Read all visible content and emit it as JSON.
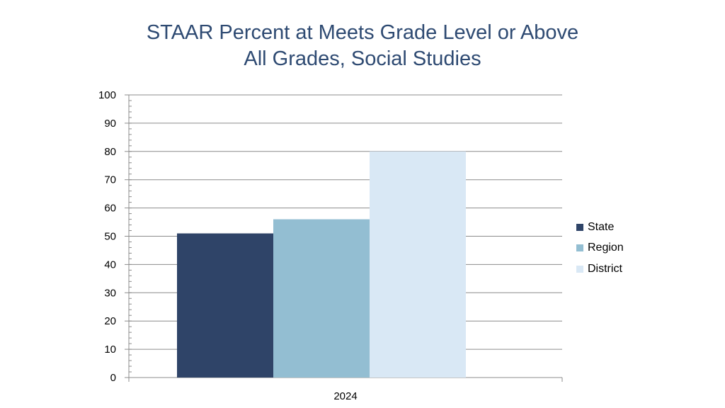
{
  "chart_data": {
    "type": "bar",
    "title": [
      "STAAR Percent at Meets Grade Level or Above",
      "All Grades, Social Studies"
    ],
    "categories": [
      "2024"
    ],
    "series": [
      {
        "name": "State",
        "values": [
          51
        ],
        "color": "#2f4468"
      },
      {
        "name": "Region",
        "values": [
          56
        ],
        "color": "#93bed2"
      },
      {
        "name": "District",
        "values": [
          80
        ],
        "color": "#d9e8f5"
      }
    ],
    "y_ticks": [
      0,
      10,
      20,
      30,
      40,
      50,
      60,
      70,
      80,
      90,
      100
    ],
    "ylim": [
      0,
      100
    ],
    "grid": true,
    "legend": "right"
  }
}
